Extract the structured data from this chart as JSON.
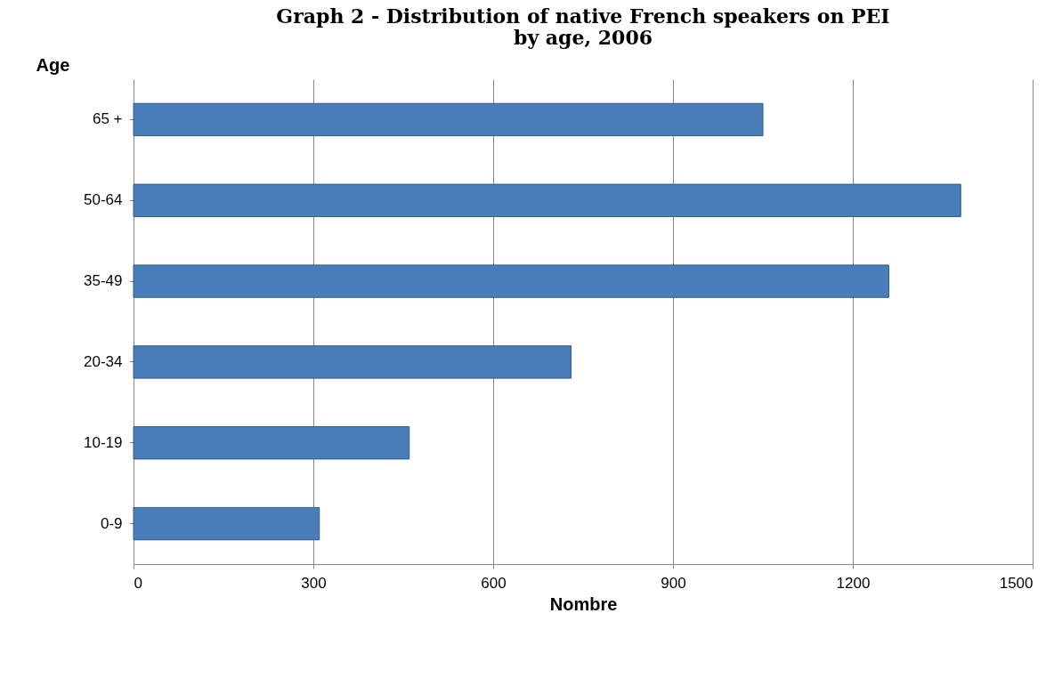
{
  "chart_data": {
    "type": "bar",
    "orientation": "horizontal",
    "title": "Graph 2 - Distribution of native French speakers on PEI by age, 2006",
    "xlabel": "Nombre",
    "ylabel": "Age",
    "categories": [
      "65 +",
      "50-64",
      "35-49",
      "20-34",
      "10-19",
      "0-9"
    ],
    "values": [
      1050,
      1380,
      1260,
      730,
      460,
      310
    ],
    "color": "#4a7ebb",
    "xlim": [
      0,
      1500
    ],
    "xticks": [
      0,
      300,
      600,
      900,
      1200,
      1500
    ],
    "grid": "x"
  }
}
